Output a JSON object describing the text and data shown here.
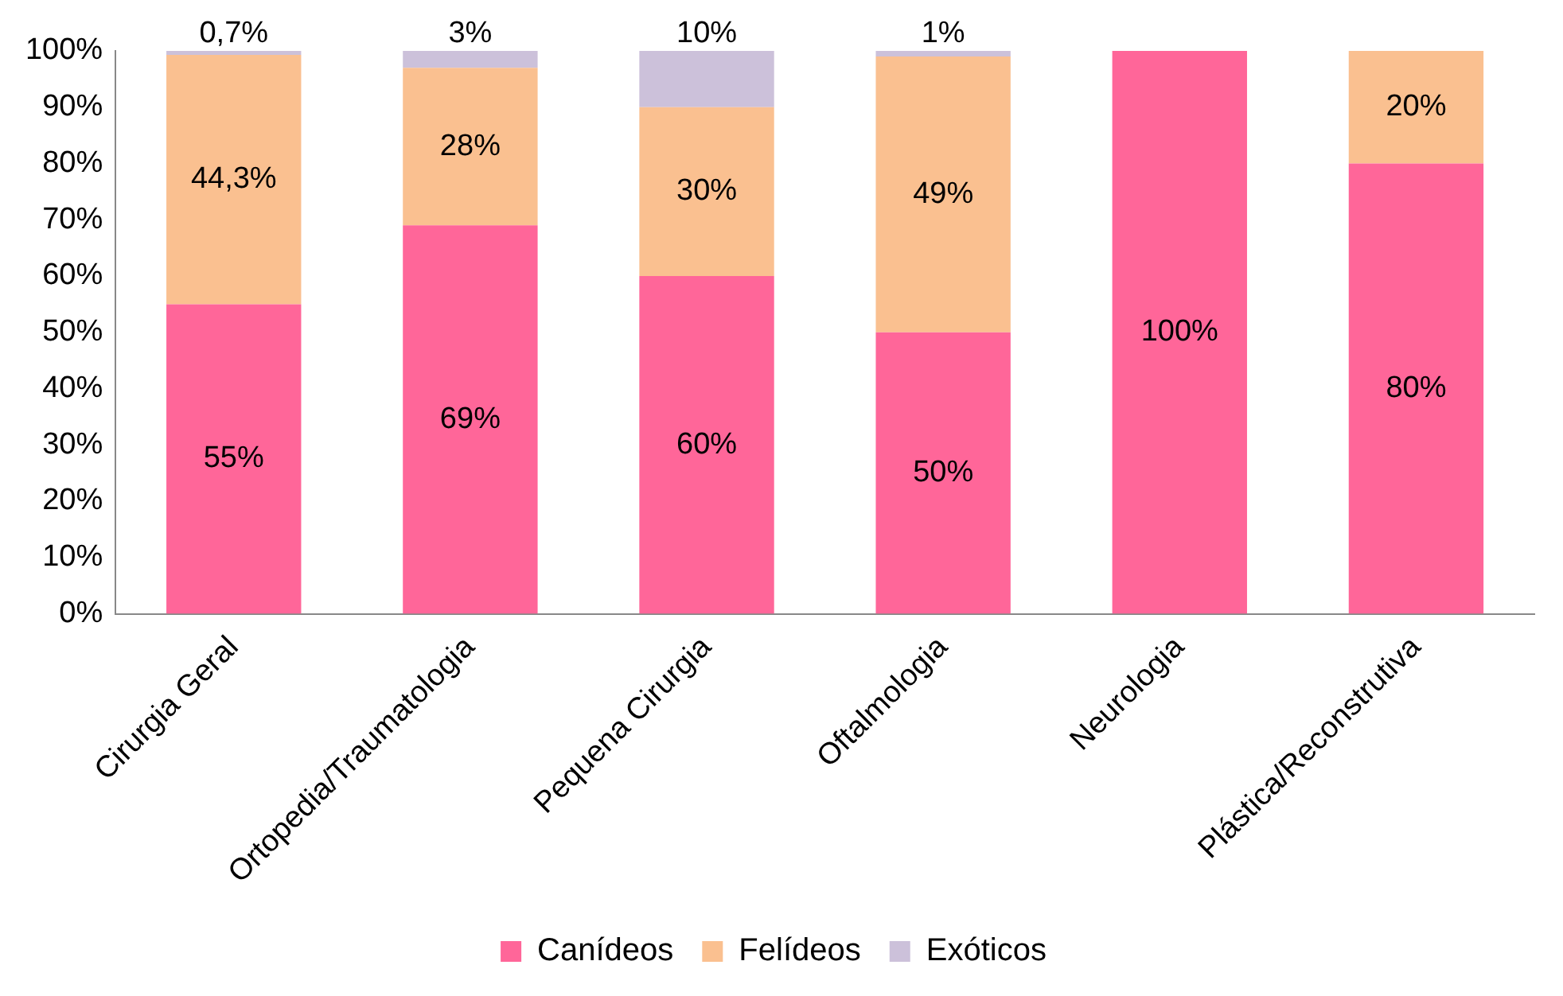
{
  "chart_data": {
    "type": "bar",
    "stacked": true,
    "categories": [
      "Cirurgia Geral",
      "Ortopedia/Traumatologia",
      "Pequena Cirurgia",
      "Oftalmologia",
      "Neurologia",
      "Plástica/Reconstrutiva"
    ],
    "series": [
      {
        "name": "Canídeos",
        "color": "#ff6699",
        "values": [
          55,
          69,
          60,
          50,
          100,
          80
        ],
        "value_labels": [
          "55%",
          "69%",
          "60%",
          "50%",
          "100%",
          "80%"
        ]
      },
      {
        "name": "Felídeos",
        "color": "#fac090",
        "values": [
          44.3,
          28,
          30,
          49,
          0,
          20
        ],
        "value_labels": [
          "44,3%",
          "28%",
          "30%",
          "49%",
          null,
          "20%"
        ]
      },
      {
        "name": "Exóticos",
        "color": "#ccc1da",
        "values": [
          0.7,
          3,
          10,
          1,
          0,
          0
        ],
        "value_labels": [
          "0,7%",
          "3%",
          "10%",
          "1%",
          null,
          null
        ]
      }
    ],
    "ylim": [
      0,
      100
    ],
    "yticks": [
      {
        "value": 0,
        "label": "0%"
      },
      {
        "value": 10,
        "label": "10%"
      },
      {
        "value": 20,
        "label": "20%"
      },
      {
        "value": 30,
        "label": "30%"
      },
      {
        "value": 40,
        "label": "40%"
      },
      {
        "value": 50,
        "label": "50%"
      },
      {
        "value": 60,
        "label": "60%"
      },
      {
        "value": 70,
        "label": "70%"
      },
      {
        "value": 80,
        "label": "80%"
      },
      {
        "value": 90,
        "label": "90%"
      },
      {
        "value": 100,
        "label": "100%"
      }
    ],
    "grid": false,
    "legend": "bottom"
  }
}
